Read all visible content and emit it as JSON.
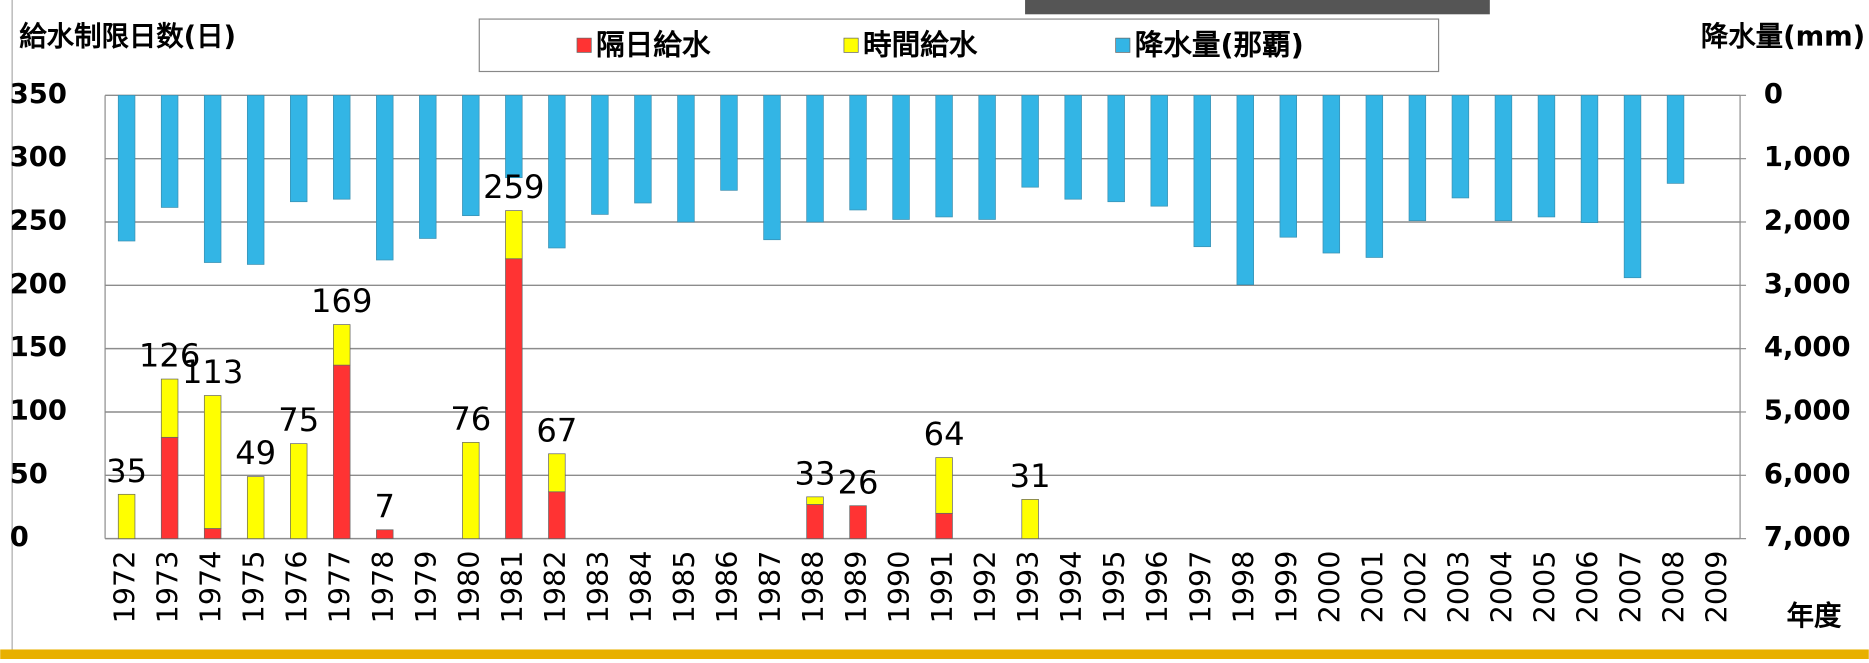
{
  "chart_data": {
    "type": "bar",
    "y_label": "給水制限日数(日)",
    "y2_label": "降水量(mm)",
    "x_label": "年度",
    "categories": [
      "1972",
      "1973",
      "1974",
      "1975",
      "1976",
      "1977",
      "1978",
      "1979",
      "1980",
      "1981",
      "1982",
      "1983",
      "1984",
      "1985",
      "1986",
      "1987",
      "1988",
      "1989",
      "1990",
      "1991",
      "1992",
      "1993",
      "1994",
      "1995",
      "1996",
      "1997",
      "1998",
      "1999",
      "2000",
      "2001",
      "2002",
      "2003",
      "2004",
      "2005",
      "2006",
      "2007",
      "2008",
      "2009"
    ],
    "series": [
      {
        "name": "隔日給水",
        "color": "#ff3333",
        "stack": "restriction",
        "values": [
          0,
          80,
          8,
          0,
          0,
          137,
          7,
          0,
          0,
          221,
          37,
          0,
          0,
          0,
          0,
          0,
          27,
          26,
          0,
          20,
          0,
          0,
          0,
          0,
          0,
          0,
          0,
          0,
          0,
          0,
          0,
          0,
          0,
          0,
          0,
          0,
          0,
          0
        ]
      },
      {
        "name": "時間給水",
        "color": "#ffff00",
        "stack": "restriction",
        "values": [
          35,
          46,
          105,
          49,
          75,
          32,
          0,
          0,
          76,
          38,
          30,
          0,
          0,
          0,
          0,
          0,
          6,
          0,
          0,
          44,
          0,
          31,
          0,
          0,
          0,
          0,
          0,
          0,
          0,
          0,
          0,
          0,
          0,
          0,
          0,
          0,
          0,
          0
        ]
      },
      {
        "name": "降水量(那覇)",
        "color": "#33b5e5",
        "axis": "y2",
        "values": [
          2300,
          1770,
          2640,
          2670,
          1680,
          1640,
          2600,
          2260,
          1900,
          1300,
          2410,
          1880,
          1700,
          2000,
          1500,
          2280,
          2000,
          1810,
          1960,
          1920,
          1960,
          1450,
          1640,
          1680,
          1750,
          2390,
          2990,
          2240,
          2490,
          2560,
          1980,
          1620,
          1980,
          1920,
          2010,
          2880,
          1390,
          null
        ]
      }
    ],
    "totals": [
      35,
      126,
      113,
      49,
      75,
      169,
      7,
      null,
      76,
      259,
      67,
      null,
      null,
      null,
      null,
      null,
      33,
      26,
      null,
      64,
      null,
      31,
      null,
      null,
      null,
      null,
      null,
      null,
      null,
      null,
      null,
      null,
      null,
      null,
      null,
      null,
      null,
      null
    ],
    "ylim": [
      0,
      350
    ],
    "yticks": [
      0,
      50,
      100,
      150,
      200,
      250,
      300,
      350
    ],
    "y2lim": [
      0,
      7000
    ],
    "y2_reversed": true,
    "y2ticks": [
      0,
      {
        "value": 1000,
        "label": "1,000"
      },
      {
        "value": 2000,
        "label": "2,000"
      },
      {
        "value": 3000,
        "label": "3,000"
      },
      {
        "value": 4000,
        "label": "4,000"
      },
      {
        "value": 5000,
        "label": "5,000"
      },
      {
        "value": 6000,
        "label": "6,000"
      },
      {
        "value": 7000,
        "label": "7,000"
      }
    ],
    "grid": true
  }
}
